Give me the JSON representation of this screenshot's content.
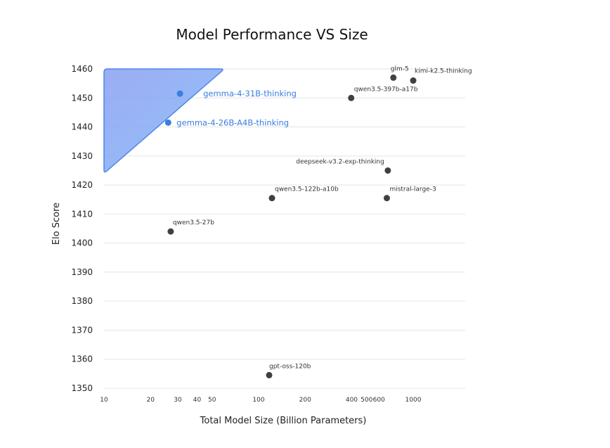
{
  "chart_data": {
    "type": "scatter",
    "title": "Model Performance VS Size",
    "xlabel": "Total Model Size (Billion Parameters)",
    "ylabel": "Elo Score",
    "x_scale": "log",
    "xlim": [
      10,
      2000
    ],
    "ylim": [
      1350,
      1460
    ],
    "x_ticks": [
      10,
      20,
      30,
      40,
      50,
      100,
      200,
      400,
      500,
      600,
      1000
    ],
    "y_ticks": [
      1350,
      1360,
      1370,
      1380,
      1390,
      1400,
      1410,
      1420,
      1430,
      1440,
      1450,
      1460
    ],
    "grid": "horizontal",
    "highlight_region": {
      "x": [
        10,
        60
      ],
      "y": [
        1424,
        1460
      ],
      "color": "#4f86ec"
    },
    "colors": {
      "point": "#404040",
      "highlight": "#3b7de0"
    },
    "points": [
      {
        "label": "gemma-4-31B-thinking",
        "x": 31,
        "y": 1451.5,
        "highlight": true
      },
      {
        "label": "gemma-4-26B-A4B-thinking",
        "x": 26,
        "y": 1441.5,
        "highlight": true
      },
      {
        "label": "glm-5",
        "x": 744,
        "y": 1457,
        "highlight": false
      },
      {
        "label": "kimi-k2.5-thinking",
        "x": 1000,
        "y": 1456,
        "highlight": false
      },
      {
        "label": "qwen3.5-397b-a17b",
        "x": 397,
        "y": 1450,
        "highlight": false
      },
      {
        "label": "deepseek-v3.2-exp-thinking",
        "x": 685,
        "y": 1425,
        "highlight": false
      },
      {
        "label": "qwen3.5-122b-a10b",
        "x": 122,
        "y": 1415.5,
        "highlight": false
      },
      {
        "label": "mistral-large-3",
        "x": 675,
        "y": 1415.5,
        "highlight": false
      },
      {
        "label": "qwen3.5-27b",
        "x": 27,
        "y": 1404,
        "highlight": false
      },
      {
        "label": "gpt-oss-120b",
        "x": 117,
        "y": 1354.5,
        "highlight": false
      }
    ]
  }
}
